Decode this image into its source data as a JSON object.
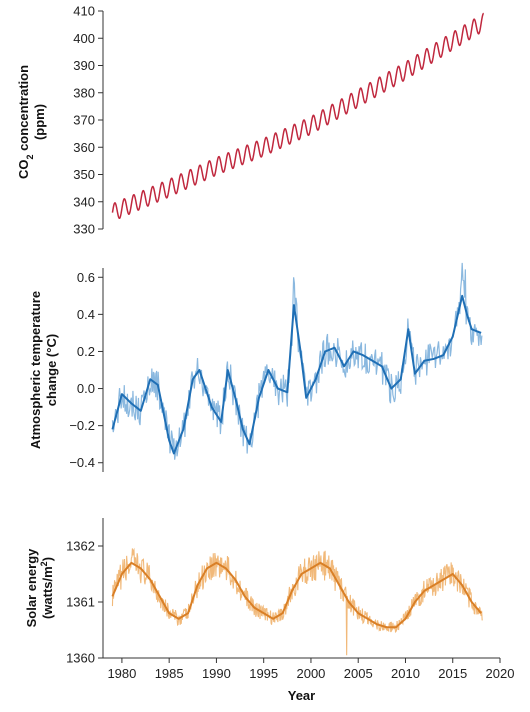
{
  "chart_data": [
    {
      "type": "line",
      "panel": "co2",
      "ylabel": "CO₂ concentration (ppm)",
      "ylabel_lines": [
        "CO",
        "2",
        " concentration",
        "(ppm)"
      ],
      "ylim": [
        330,
        410
      ],
      "yticks": [
        330,
        340,
        350,
        360,
        370,
        380,
        390,
        400,
        410
      ],
      "xlim": [
        1978,
        2020
      ],
      "series": [
        {
          "color": "#c0283e",
          "trend_x": [
            1979,
            1985,
            1990,
            1995,
            2000,
            2005,
            2010,
            2015,
            2018.3
          ],
          "trend_y": [
            336,
            345,
            353,
            360,
            368,
            378,
            388,
            399,
            406
          ],
          "seasonal_amplitude_ppm": 3.2
        }
      ]
    },
    {
      "type": "line",
      "panel": "temperature",
      "ylabel": "Atmospheric temperature change (°C)",
      "ylabel_lines": [
        "Atmospheric temperature",
        "change (°C)"
      ],
      "ylim": [
        -0.45,
        0.65
      ],
      "yticks": [
        -0.4,
        -0.2,
        0.0,
        0.2,
        0.4,
        0.6
      ],
      "ytick_labels": [
        "−0.4",
        "−0.2",
        "0.0",
        "0.2",
        "0.4",
        "0.6"
      ],
      "xlim": [
        1978,
        2020
      ],
      "series": [
        {
          "role": "monthly",
          "color": "#8ab8df",
          "noise_amplitude": 0.09
        },
        {
          "role": "smoothed",
          "color": "#1f6fb5",
          "x": [
            1979.0,
            1980.0,
            1981.0,
            1982.0,
            1983.0,
            1983.8,
            1985.0,
            1985.5,
            1986.5,
            1987.5,
            1988.2,
            1989.5,
            1990.5,
            1991.2,
            1992.0,
            1992.8,
            1993.5,
            1994.5,
            1995.5,
            1996.5,
            1997.5,
            1998.2,
            1998.9,
            1999.5,
            2000.5,
            2001.5,
            2002.5,
            2003.5,
            2004.5,
            2005.5,
            2006.5,
            2007.5,
            2008.5,
            2009.5,
            2010.3,
            2011.0,
            2012.0,
            2013.0,
            2014.0,
            2015.0,
            2016.0,
            2016.5,
            2017.0,
            2018.0
          ],
          "y": [
            -0.22,
            -0.03,
            -0.08,
            -0.12,
            0.05,
            0.02,
            -0.28,
            -0.35,
            -0.22,
            0.05,
            0.1,
            -0.1,
            -0.18,
            0.1,
            -0.05,
            -0.22,
            -0.3,
            -0.05,
            0.1,
            0.0,
            -0.02,
            0.45,
            0.2,
            -0.05,
            0.05,
            0.2,
            0.22,
            0.12,
            0.2,
            0.18,
            0.15,
            0.12,
            0.0,
            0.05,
            0.32,
            0.08,
            0.15,
            0.16,
            0.18,
            0.28,
            0.5,
            0.4,
            0.32,
            0.3
          ]
        }
      ]
    },
    {
      "type": "line",
      "panel": "solar",
      "ylabel": "Solar energy (watts/m²)",
      "ylabel_lines": [
        "Solar energy",
        "(watts/m",
        "2",
        ")"
      ],
      "ylim": [
        1360,
        1362.5
      ],
      "yticks": [
        1360,
        1361,
        1362
      ],
      "xlabel": "Year",
      "xlim": [
        1978,
        2020
      ],
      "xticks": [
        1980,
        1985,
        1990,
        1995,
        2000,
        2005,
        2010,
        2015,
        2020
      ],
      "series": [
        {
          "role": "daily",
          "color": "#f1b97a",
          "noise_amplitude": 0.28
        },
        {
          "role": "smoothed",
          "color": "#d97f26",
          "x": [
            1979.0,
            1980.0,
            1981.0,
            1982.0,
            1983.0,
            1984.0,
            1985.0,
            1986.0,
            1987.0,
            1988.0,
            1989.0,
            1990.0,
            1991.0,
            1992.0,
            1993.0,
            1994.0,
            1995.0,
            1996.0,
            1997.0,
            1998.0,
            1999.0,
            2000.0,
            2001.0,
            2002.0,
            2003.0,
            2004.0,
            2005.0,
            2006.0,
            2007.0,
            2008.0,
            2009.0,
            2010.0,
            2011.0,
            2012.0,
            2013.0,
            2014.0,
            2015.0,
            2016.0,
            2017.0,
            2018.0
          ],
          "y": [
            1361.1,
            1361.5,
            1361.7,
            1361.6,
            1361.4,
            1361.1,
            1360.8,
            1360.7,
            1360.8,
            1361.3,
            1361.6,
            1361.7,
            1361.6,
            1361.4,
            1361.1,
            1360.9,
            1360.8,
            1360.7,
            1360.8,
            1361.2,
            1361.5,
            1361.6,
            1361.7,
            1361.6,
            1361.3,
            1361.0,
            1360.8,
            1360.7,
            1360.6,
            1360.55,
            1360.55,
            1360.7,
            1361.0,
            1361.2,
            1361.3,
            1361.4,
            1361.5,
            1361.3,
            1361.0,
            1360.8
          ]
        }
      ]
    }
  ]
}
